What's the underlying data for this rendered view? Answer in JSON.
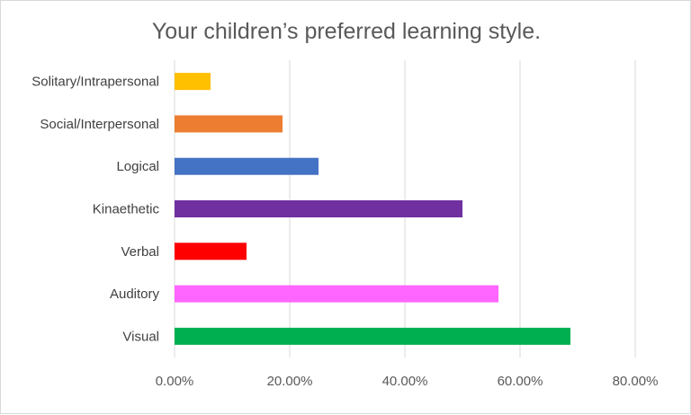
{
  "chart_data": {
    "type": "bar",
    "orientation": "horizontal",
    "title": "Your children’s preferred learning style.",
    "xlabel": "",
    "ylabel": "",
    "xlim": [
      0,
      0.8
    ],
    "grid": true,
    "legend": "none",
    "x_ticks": [
      "0.00%",
      "20.00%",
      "40.00%",
      "60.00%",
      "80.00%"
    ],
    "categories": [
      "Solitary/Intrapersonal",
      "Social/Interpersonal",
      "Logical",
      "Kinaethetic",
      "Verbal",
      "Auditory",
      "Visual"
    ],
    "values": [
      0.0625,
      0.1875,
      0.25,
      0.5,
      0.125,
      0.5625,
      0.6875
    ],
    "colors": [
      "#ffc000",
      "#ed7d31",
      "#4472c4",
      "#7030a0",
      "#ff0000",
      "#ff66ff",
      "#00b050"
    ]
  }
}
